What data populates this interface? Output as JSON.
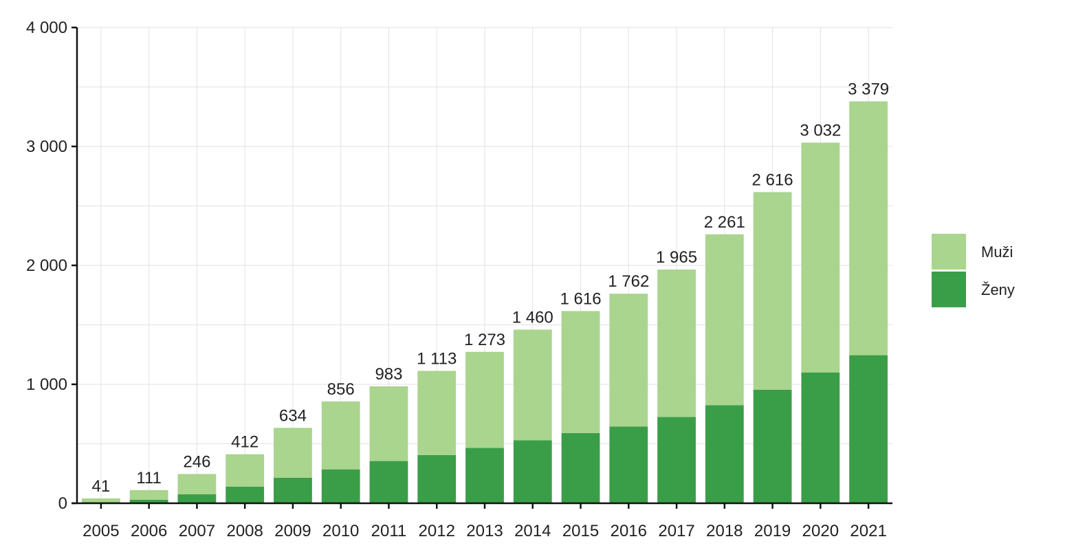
{
  "chart_data": {
    "type": "bar",
    "stacked": true,
    "title": "",
    "xlabel": "",
    "ylabel": "",
    "categories": [
      "2005",
      "2006",
      "2007",
      "2008",
      "2009",
      "2010",
      "2011",
      "2012",
      "2013",
      "2014",
      "2015",
      "2016",
      "2017",
      "2018",
      "2019",
      "2020",
      "2021"
    ],
    "series": [
      {
        "name": "Ženy",
        "color": "#3a9e48",
        "values": [
          10,
          30,
          75,
          140,
          215,
          285,
          355,
          405,
          465,
          530,
          590,
          645,
          725,
          825,
          955,
          1100,
          1245
        ]
      },
      {
        "name": "Muži",
        "color": "#a9d58e",
        "values": [
          31,
          81,
          171,
          272,
          419,
          571,
          628,
          708,
          808,
          930,
          1026,
          1117,
          1240,
          1436,
          1661,
          1932,
          2134
        ]
      }
    ],
    "totals": [
      41,
      111,
      246,
      412,
      634,
      856,
      983,
      1113,
      1273,
      1460,
      1616,
      1762,
      1965,
      2261,
      2616,
      3032,
      3379
    ],
    "total_labels": [
      "41",
      "111",
      "246",
      "412",
      "634",
      "856",
      "983",
      "1 113",
      "1 273",
      "1 460",
      "1 616",
      "1 762",
      "1 965",
      "2 261",
      "2 616",
      "3 032",
      "3 379"
    ],
    "ylim": [
      0,
      4000
    ],
    "yticks": [
      0,
      1000,
      2000,
      3000,
      4000
    ],
    "ytick_labels": [
      "0",
      "1 000",
      "2 000",
      "3 000",
      "4 000"
    ],
    "grid": true,
    "legend": {
      "placement": "right",
      "entries": [
        "Muži",
        "Ženy"
      ]
    }
  }
}
